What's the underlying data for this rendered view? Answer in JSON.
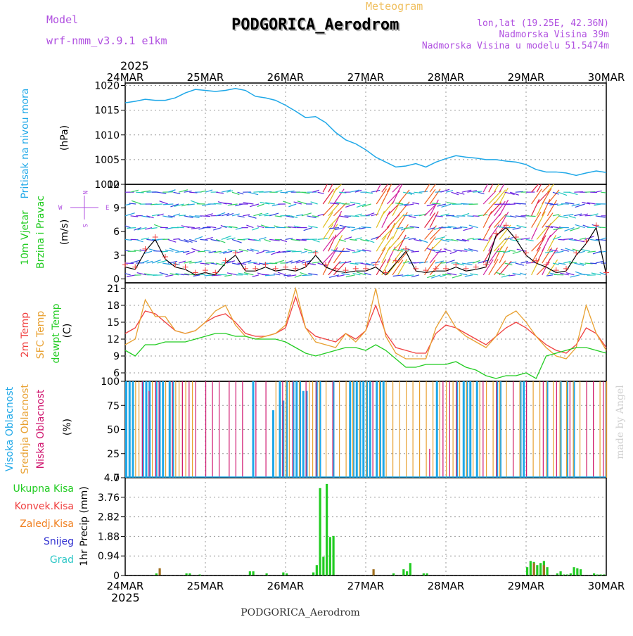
{
  "header": {
    "model_label": "Model",
    "model_name": "wrf-nmm_v3.9.1 e1km",
    "meteogram_label": "Meteogram",
    "station": "PODGORICA_Aerodrom",
    "lonlat": "lon,lat (19.25E, 42.36N)",
    "elevation": "Nadmorska Visina 39m",
    "model_elevation": "Nadmorska Visina u modelu 51.5474m",
    "footer_station": "PODGORICA_Aerodrom",
    "credit": "made by Angel",
    "year_top": "2025",
    "year_bottom": "2025"
  },
  "colors": {
    "pressure": "#1fa8e8",
    "wind_black": "#000000",
    "temp2m": "#f04040",
    "sfc": "#e8a030",
    "dew": "#22cc22",
    "high_cloud": "#1fa8e8",
    "mid_cloud": "#e8a030",
    "low_cloud": "#d01870",
    "total_precip": "#22cc22",
    "conv_precip": "#f04040",
    "frozen_precip": "#f08020",
    "snow": "#3030d0",
    "grad": "#30c8c8",
    "purple_text": "#b050e0",
    "meteogram_text": "#f0c060"
  },
  "days": [
    "24MAR",
    "25MAR",
    "26MAR",
    "27MAR",
    "28MAR",
    "29MAR",
    "30MAR"
  ],
  "panels": {
    "pressure": {
      "label": "Pritisak na nivou mora",
      "unit": "(hPa)",
      "ticks": [
        "1020",
        "1015",
        "1010",
        "1005",
        "1000"
      ]
    },
    "wind": {
      "label1": "10m Vjetar",
      "label2": "Brzina i Pravac",
      "unit": "(m/s)",
      "ticks": [
        "12",
        "9",
        "6",
        "3",
        "0"
      ],
      "compass_w": "W",
      "compass_e": "E",
      "compass_n": "N",
      "compass_s": "S"
    },
    "temp": {
      "label1": "2m Temp",
      "label2": "SFC Temp",
      "label3": "dewpt Temp",
      "unit": "(C)",
      "ticks": [
        "21",
        "18",
        "15",
        "12",
        "9",
        "6"
      ]
    },
    "cloud": {
      "label1": "Visoka Oblacnost",
      "label2": "Srednja Oblacnost",
      "label3": "Niska Oblacnost",
      "unit": "(%)",
      "ticks": [
        "100",
        "75",
        "50",
        "25",
        "0"
      ]
    },
    "precip": {
      "legend": [
        "Ukupna Kisa",
        "Konvek.Kisa",
        "Zaledj.Kisa",
        "Snijeg",
        "Grad"
      ],
      "unit": "1hr Precip (mm)",
      "ticks": [
        "4.7",
        "3.76",
        "2.82",
        "1.88",
        "0.94",
        "0"
      ]
    }
  },
  "chart_data": [
    {
      "type": "line",
      "name": "pressure",
      "ylabel": "Pritisak na nivou mora (hPa)",
      "ylim": [
        1000,
        1020.5
      ],
      "x_hours": [
        0,
        3,
        6,
        9,
        12,
        15,
        18,
        21,
        24,
        27,
        30,
        33,
        36,
        39,
        42,
        45,
        48,
        51,
        54,
        57,
        60,
        63,
        66,
        69,
        72,
        75,
        78,
        81,
        84,
        87,
        90,
        93,
        96,
        99,
        102,
        105,
        108,
        111,
        114,
        117,
        120,
        123,
        126,
        129,
        132,
        135,
        138,
        141,
        144
      ],
      "values": [
        1016.5,
        1016.8,
        1017.2,
        1017,
        1017,
        1017.5,
        1018.5,
        1019.2,
        1019,
        1018.8,
        1019,
        1019.4,
        1019,
        1017.8,
        1017.5,
        1017,
        1016,
        1014.8,
        1013.5,
        1013.7,
        1012.5,
        1010.5,
        1009,
        1008.2,
        1007,
        1005.5,
        1004.5,
        1003.5,
        1003.7,
        1004.2,
        1003.5,
        1004.5,
        1005.2,
        1005.8,
        1005.5,
        1005.3,
        1005,
        1005,
        1004.7,
        1004.5,
        1004,
        1003,
        1002.5,
        1002.5,
        1002.3,
        1001.8,
        1002.3,
        1002.7,
        1002.4
      ]
    },
    {
      "type": "line",
      "name": "wind",
      "ylabel": "10m Vjetar Brzina i Pravac (m/s)",
      "ylim": [
        -0.5,
        12
      ],
      "x_hours": [
        0,
        3,
        6,
        9,
        12,
        15,
        18,
        21,
        24,
        27,
        30,
        33,
        36,
        39,
        42,
        45,
        48,
        51,
        54,
        57,
        60,
        63,
        66,
        69,
        72,
        75,
        78,
        81,
        84,
        87,
        90,
        93,
        96,
        99,
        102,
        105,
        108,
        111,
        114,
        117,
        120,
        123,
        126,
        129,
        132,
        135,
        138,
        141,
        144
      ],
      "values": [
        1.5,
        1.2,
        3.5,
        5,
        2.5,
        1.5,
        1.2,
        0.5,
        0.8,
        0.5,
        2,
        3,
        1,
        1,
        1.5,
        1,
        1.2,
        1,
        1.5,
        3,
        1.5,
        1,
        0.8,
        1,
        1,
        1.5,
        0.5,
        2,
        3.5,
        1,
        0.8,
        1,
        1,
        1.5,
        1,
        1.2,
        1.5,
        5.5,
        6.5,
        5,
        3,
        2,
        1.5,
        0.8,
        1,
        3,
        4.5,
        6.5,
        0.5
      ]
    },
    {
      "type": "line",
      "name": "temperature",
      "ylabel": "(C)",
      "ylim": [
        4.5,
        22
      ],
      "x_hours": [
        0,
        3,
        6,
        9,
        12,
        15,
        18,
        21,
        24,
        27,
        30,
        33,
        36,
        39,
        42,
        45,
        48,
        51,
        54,
        57,
        60,
        63,
        66,
        69,
        72,
        75,
        78,
        81,
        84,
        87,
        90,
        93,
        96,
        99,
        102,
        105,
        108,
        111,
        114,
        117,
        120,
        123,
        126,
        129,
        132,
        135,
        138,
        141,
        144
      ],
      "series": [
        {
          "name": "2m Temp",
          "values": [
            13,
            14,
            17,
            16.5,
            15,
            13.5,
            13,
            13.5,
            15,
            16,
            16.5,
            15,
            13,
            12.5,
            12.5,
            13,
            14,
            19.5,
            14,
            12.5,
            12,
            11.5,
            13,
            12,
            13.5,
            18,
            13,
            10.5,
            10,
            9.5,
            9.5,
            13,
            14.5,
            14,
            13,
            12,
            11,
            12.5,
            14,
            15,
            14,
            12.5,
            11,
            10,
            9.5,
            11,
            14,
            13,
            10.5
          ]
        },
        {
          "name": "SFC Temp",
          "values": [
            11,
            12,
            19,
            16,
            16,
            13.5,
            13,
            13.5,
            15,
            17,
            18,
            14.5,
            12.5,
            12,
            12.5,
            13,
            14.5,
            21,
            14,
            11.5,
            11,
            10.5,
            13,
            11.5,
            13.5,
            21,
            12.5,
            9.5,
            8.5,
            8.5,
            8.5,
            14,
            17,
            14,
            12.5,
            11.5,
            10.5,
            12.5,
            16,
            17,
            15,
            12.5,
            10.5,
            9,
            8.5,
            10.5,
            18,
            13,
            10
          ]
        },
        {
          "name": "dewpt Temp",
          "values": [
            10,
            9,
            11,
            11,
            11.5,
            11.5,
            11.5,
            12,
            12.5,
            13,
            13,
            12.5,
            12.5,
            12,
            12,
            12,
            11.5,
            10.5,
            9.5,
            9,
            9.5,
            10,
            10.5,
            10.5,
            10,
            11,
            10,
            8.5,
            7,
            7,
            7.5,
            7.5,
            7.5,
            8,
            7,
            6.5,
            5.5,
            5,
            5.5,
            5.5,
            6,
            5,
            9,
            9.5,
            10,
            10.5,
            10.5,
            10,
            9.5
          ]
        }
      ]
    },
    {
      "type": "bar",
      "name": "cloud",
      "ylabel": "(%)",
      "ylim": [
        0,
        100
      ],
      "series": [
        {
          "name": "Visoka Oblacnost",
          "hours": [
            0,
            1,
            2,
            5,
            6,
            7,
            9,
            10,
            11,
            13,
            14,
            38,
            44,
            46,
            47,
            48,
            50,
            51,
            52,
            53,
            54,
            57,
            58,
            62,
            67,
            68,
            69,
            70,
            71,
            72,
            73,
            75,
            76,
            77,
            93,
            99,
            101,
            102,
            103,
            105,
            111,
            112,
            118,
            119,
            126,
            130,
            132,
            134
          ],
          "values": [
            100,
            100,
            100,
            100,
            100,
            100,
            100,
            100,
            100,
            100,
            100,
            100,
            70,
            100,
            80,
            100,
            100,
            100,
            100,
            90,
            90,
            100,
            100,
            100,
            100,
            100,
            100,
            100,
            100,
            100,
            100,
            100,
            100,
            100,
            100,
            100,
            100,
            100,
            100,
            100,
            100,
            100,
            100,
            100,
            100,
            100,
            100,
            100
          ]
        },
        {
          "name": "Srednja Oblacnost",
          "hours": [
            3,
            4,
            8,
            12,
            15,
            16,
            17,
            18,
            20,
            45,
            48,
            49,
            52,
            55,
            56,
            58,
            60,
            62,
            64,
            66,
            68,
            70,
            72,
            74,
            76,
            78,
            80,
            82,
            84,
            86,
            88,
            90,
            92,
            94,
            96,
            98,
            100,
            102,
            104,
            106,
            108,
            110,
            112,
            114,
            116,
            118,
            120,
            122,
            124,
            126,
            128,
            130,
            132,
            134,
            136,
            138,
            140,
            142,
            144
          ],
          "values": [
            100,
            100,
            100,
            100,
            100,
            100,
            100,
            100,
            100,
            100,
            100,
            100,
            100,
            100,
            100,
            100,
            100,
            100,
            100,
            100,
            100,
            100,
            100,
            100,
            100,
            100,
            100,
            100,
            100,
            100,
            100,
            100,
            100,
            100,
            100,
            100,
            100,
            100,
            100,
            100,
            100,
            100,
            100,
            100,
            100,
            100,
            100,
            100,
            100,
            100,
            100,
            100,
            100,
            100,
            100,
            100,
            100,
            100,
            100
          ]
        },
        {
          "name": "Niska Oblacnost",
          "hours": [
            5,
            7,
            9,
            10,
            14,
            17,
            19,
            21,
            24,
            26,
            28,
            31,
            33,
            35,
            39,
            42,
            47,
            50,
            54,
            57,
            62,
            74,
            91,
            95,
            97,
            99,
            107,
            111,
            116,
            120,
            125,
            129,
            133,
            138,
            140,
            143
          ],
          "values": [
            100,
            90,
            100,
            100,
            100,
            100,
            100,
            100,
            100,
            100,
            100,
            100,
            100,
            100,
            100,
            100,
            100,
            100,
            100,
            100,
            100,
            100,
            30,
            100,
            100,
            100,
            100,
            100,
            100,
            100,
            100,
            100,
            100,
            100,
            100,
            100
          ]
        }
      ]
    },
    {
      "type": "bar",
      "name": "precip",
      "ylabel": "1hr Precip (mm)",
      "ylim": [
        0,
        4.7
      ],
      "series": [
        {
          "name": "Ukupna Kisa",
          "hours": [
            9,
            18,
            19,
            22,
            37,
            38,
            42,
            47,
            48,
            56,
            57,
            58,
            59,
            60,
            61,
            62,
            80,
            83,
            84,
            85,
            89,
            90,
            120,
            121,
            122,
            123,
            124,
            125,
            126,
            129,
            130,
            131,
            132,
            133,
            134,
            135,
            136,
            140,
            141,
            142,
            143
          ],
          "values": [
            0.1,
            0.1,
            0.1,
            0.05,
            0.2,
            0.2,
            0.1,
            0.15,
            0.1,
            0.15,
            0.5,
            4.2,
            0.9,
            4.4,
            1.85,
            1.9,
            0.1,
            0.3,
            0.2,
            0.6,
            0.1,
            0.1,
            0.4,
            0.7,
            0.65,
            0.5,
            0.6,
            0.7,
            0.4,
            0.1,
            0.2,
            0.05,
            0.05,
            0.1,
            0.4,
            0.35,
            0.3,
            0.1,
            0.05,
            0.05,
            0.05
          ]
        },
        {
          "name": "Konvek.Kisa",
          "hours": [
            10,
            74,
            122,
            125
          ],
          "values": [
            0.35,
            0.3,
            0.6,
            0.5
          ]
        }
      ]
    }
  ]
}
